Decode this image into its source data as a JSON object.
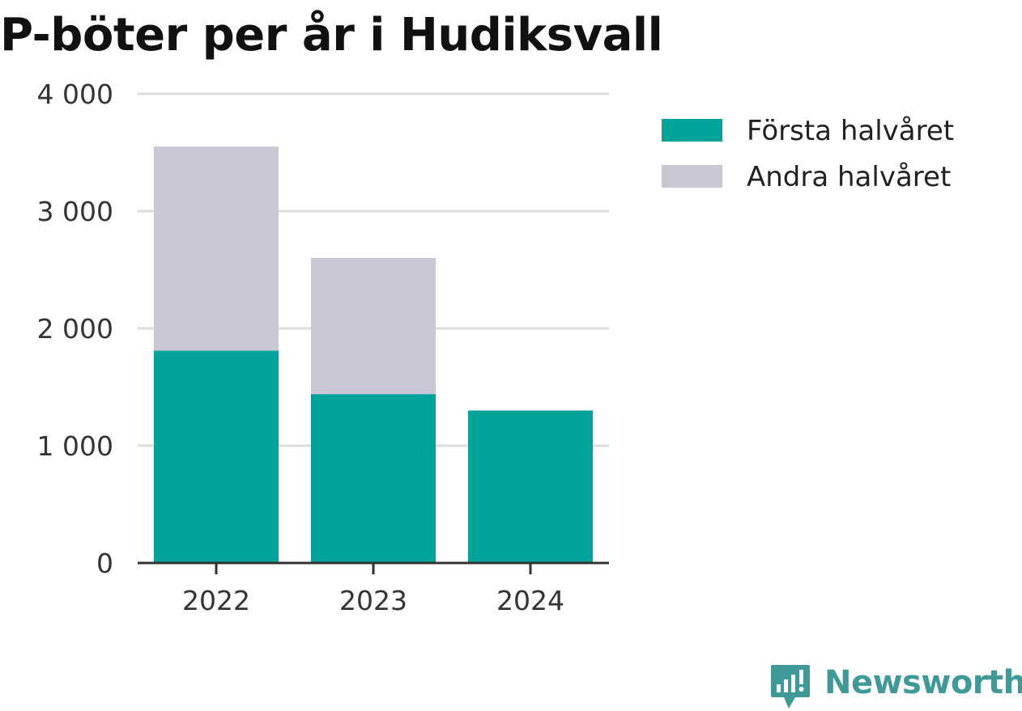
{
  "chart_data": {
    "type": "bar",
    "stacked": true,
    "title": "P-böter per år i Hudiksvall",
    "categories": [
      "2022",
      "2023",
      "2024"
    ],
    "series": [
      {
        "name": "Första halvåret",
        "values": [
          1810,
          1440,
          1300
        ],
        "color": "#00a39a"
      },
      {
        "name": "Andra halvåret",
        "values": [
          1740,
          1160,
          0
        ],
        "color": "#c8c7d3"
      }
    ],
    "ylim": [
      0,
      4000
    ],
    "yticks": [
      0,
      1000,
      2000,
      3000,
      4000
    ],
    "ytick_labels": [
      "0",
      "1 000",
      "2 000",
      "3 000",
      "4 000"
    ],
    "xlabel": "",
    "ylabel": "",
    "grid": true,
    "legend_position": "top-right"
  },
  "branding": {
    "logo_text": "Newsworthy",
    "logo_icon": "chat-bars-icon",
    "logo_color": "#3f9a97"
  }
}
